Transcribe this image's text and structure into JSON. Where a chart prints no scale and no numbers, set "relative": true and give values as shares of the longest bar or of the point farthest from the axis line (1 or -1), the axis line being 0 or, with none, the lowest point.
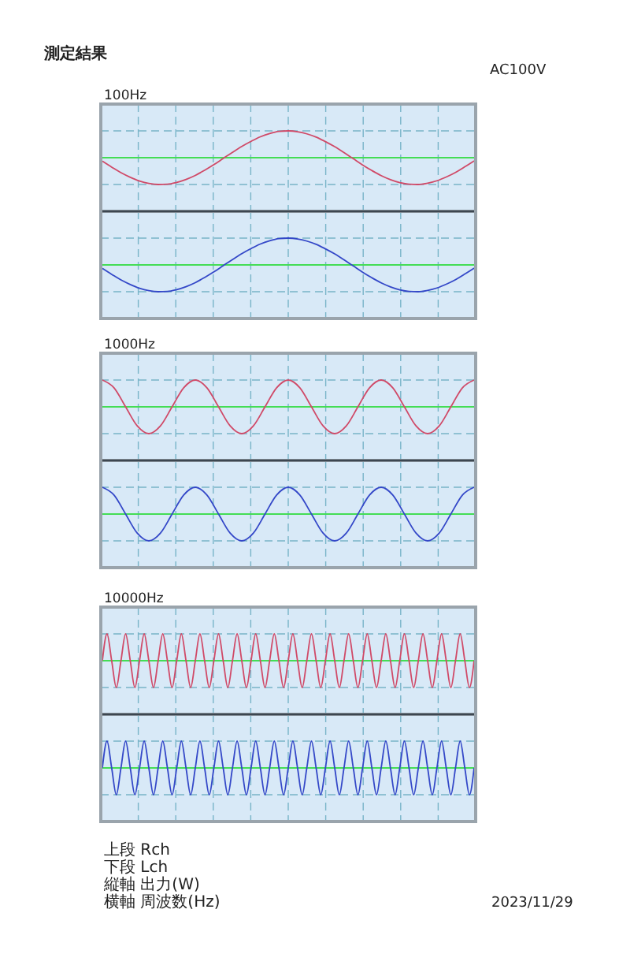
{
  "chart_data": [
    {
      "type": "line",
      "title": "100Hz",
      "relative": true,
      "grid": true,
      "annotations": [
        "測定結果",
        "AC100V"
      ],
      "ref_lines": [
        {
          "axis": "y",
          "value": 0,
          "color": "#44dd55"
        }
      ],
      "categories": [
        null,
        null,
        null,
        null,
        null,
        null,
        null,
        null,
        null,
        null,
        null,
        null,
        null,
        null,
        null,
        null,
        null,
        null,
        null,
        null,
        null,
        null,
        null,
        null,
        null,
        null,
        null,
        null,
        null,
        null,
        null,
        null,
        null,
        null,
        null,
        null,
        null,
        null,
        null,
        null,
        null
      ],
      "series": [
        {
          "color": "#d04a68",
          "values": [
            -0.13,
            -0.35,
            -0.56,
            -0.73,
            -0.87,
            -0.96,
            -1,
            -0.99,
            -0.92,
            -0.81,
            -0.66,
            -0.47,
            -0.26,
            -0.03,
            0.2,
            0.42,
            0.61,
            0.78,
            0.9,
            0.98,
            1,
            0.97,
            0.89,
            0.77,
            0.6,
            0.41,
            0.19,
            -0.04,
            -0.27,
            -0.48,
            -0.67,
            -0.82,
            -0.93,
            -0.99,
            -1,
            -0.95,
            -0.86,
            -0.72,
            -0.55,
            -0.34,
            -0.12
          ]
        }
      ]
    },
    {
      "type": "line",
      "relative": true,
      "grid": true,
      "ref_lines": [
        {
          "axis": "y",
          "value": 0,
          "color": "#44dd55"
        }
      ],
      "categories": [
        null,
        null,
        null,
        null,
        null,
        null,
        null,
        null,
        null,
        null,
        null,
        null,
        null,
        null,
        null,
        null,
        null,
        null,
        null,
        null,
        null,
        null,
        null,
        null,
        null,
        null,
        null,
        null,
        null,
        null,
        null,
        null,
        null,
        null,
        null,
        null,
        null,
        null,
        null,
        null,
        null
      ],
      "series": [
        {
          "color": "#3448c8",
          "values": [
            -0.13,
            -0.35,
            -0.56,
            -0.73,
            -0.87,
            -0.96,
            -1,
            -0.99,
            -0.92,
            -0.81,
            -0.66,
            -0.47,
            -0.26,
            -0.03,
            0.2,
            0.42,
            0.61,
            0.78,
            0.9,
            0.98,
            1,
            0.97,
            0.89,
            0.77,
            0.6,
            0.41,
            0.19,
            -0.04,
            -0.27,
            -0.48,
            -0.67,
            -0.82,
            -0.93,
            -0.99,
            -1,
            -0.95,
            -0.86,
            -0.72,
            -0.55,
            -0.34,
            -0.12
          ]
        }
      ]
    },
    {
      "type": "line",
      "title": "1000Hz",
      "relative": true,
      "grid": true,
      "ref_lines": [
        {
          "axis": "y",
          "value": 0,
          "color": "#44dd55"
        }
      ],
      "categories": [
        null,
        null,
        null,
        null,
        null,
        null,
        null,
        null,
        null,
        null,
        null,
        null,
        null,
        null,
        null,
        null,
        null,
        null,
        null,
        null,
        null,
        null,
        null,
        null,
        null,
        null,
        null,
        null,
        null,
        null,
        null,
        null,
        null
      ],
      "series": [
        {
          "color": "#d04a68",
          "values": [
            1,
            0.71,
            0,
            -0.71,
            -1,
            -0.71,
            0,
            0.71,
            1,
            0.71,
            0,
            -0.71,
            -1,
            -0.71,
            0,
            0.71,
            1,
            0.71,
            0,
            -0.71,
            -1,
            -0.71,
            0,
            0.71,
            1,
            0.71,
            0,
            -0.71,
            -1,
            -0.71,
            0,
            0.71,
            1
          ]
        }
      ]
    },
    {
      "type": "line",
      "relative": true,
      "grid": true,
      "ref_lines": [
        {
          "axis": "y",
          "value": 0,
          "color": "#44dd55"
        }
      ],
      "categories": [
        null,
        null,
        null,
        null,
        null,
        null,
        null,
        null,
        null,
        null,
        null,
        null,
        null,
        null,
        null,
        null,
        null,
        null,
        null,
        null,
        null,
        null,
        null,
        null,
        null,
        null,
        null,
        null,
        null,
        null,
        null,
        null,
        null
      ],
      "series": [
        {
          "color": "#3448c8",
          "values": [
            1,
            0.71,
            0,
            -0.71,
            -1,
            -0.71,
            0,
            0.71,
            1,
            0.71,
            0,
            -0.71,
            -1,
            -0.71,
            0,
            0.71,
            1,
            0.71,
            0,
            -0.71,
            -1,
            -0.71,
            0,
            0.71,
            1,
            0.71,
            0,
            -0.71,
            -1,
            -0.71,
            0,
            0.71,
            1
          ]
        }
      ]
    },
    {
      "type": "line",
      "title": "10000Hz",
      "relative": true,
      "grid": true,
      "ref_lines": [
        {
          "axis": "y",
          "value": 0,
          "color": "#44dd55"
        }
      ],
      "categories": [
        null,
        null,
        null,
        null,
        null,
        null,
        null,
        null,
        null,
        null,
        null,
        null,
        null,
        null,
        null,
        null,
        null,
        null,
        null,
        null,
        null,
        null,
        null,
        null,
        null,
        null,
        null,
        null,
        null,
        null,
        null,
        null,
        null,
        null,
        null,
        null,
        null,
        null,
        null,
        null,
        null,
        null,
        null,
        null,
        null,
        null,
        null,
        null,
        null,
        null,
        null,
        null,
        null,
        null,
        null,
        null,
        null,
        null,
        null,
        null,
        null,
        null,
        null,
        null,
        null,
        null,
        null,
        null,
        null,
        null,
        null,
        null,
        null,
        null,
        null,
        null,
        null,
        null,
        null,
        null,
        null
      ],
      "series": [
        {
          "color": "#d04a68",
          "values": [
            0,
            1,
            0,
            -1,
            0,
            1,
            0,
            -1,
            0,
            1,
            0,
            -1,
            0,
            1,
            0,
            -1,
            0,
            1,
            0,
            -1,
            0,
            1,
            0,
            -1,
            0,
            1,
            0,
            -1,
            0,
            1,
            0,
            -1,
            0,
            1,
            0,
            -1,
            0,
            1,
            0,
            -1,
            0,
            1,
            0,
            -1,
            0,
            1,
            0,
            -1,
            0,
            1,
            0,
            -1,
            0,
            1,
            0,
            -1,
            0,
            1,
            0,
            -1,
            0,
            1,
            0,
            -1,
            0,
            1,
            0,
            -1,
            0,
            1,
            0,
            -1,
            0,
            1,
            0,
            -1,
            0,
            1,
            0,
            -1,
            0
          ]
        }
      ]
    },
    {
      "type": "line",
      "relative": true,
      "grid": true,
      "annotations": [
        "上段 Rch",
        "下段 Lch",
        "縦軸 出力(W)",
        "横軸 周波数(Hz)",
        "2023/11/29"
      ],
      "ref_lines": [
        {
          "axis": "y",
          "value": 0,
          "color": "#44dd55"
        }
      ],
      "categories": [
        null,
        null,
        null,
        null,
        null,
        null,
        null,
        null,
        null,
        null,
        null,
        null,
        null,
        null,
        null,
        null,
        null,
        null,
        null,
        null,
        null,
        null,
        null,
        null,
        null,
        null,
        null,
        null,
        null,
        null,
        null,
        null,
        null,
        null,
        null,
        null,
        null,
        null,
        null,
        null,
        null,
        null,
        null,
        null,
        null,
        null,
        null,
        null,
        null,
        null,
        null,
        null,
        null,
        null,
        null,
        null,
        null,
        null,
        null,
        null,
        null,
        null,
        null,
        null,
        null,
        null,
        null,
        null,
        null,
        null,
        null,
        null,
        null,
        null,
        null,
        null,
        null,
        null,
        null,
        null,
        null
      ],
      "series": [
        {
          "color": "#3448c8",
          "values": [
            0,
            1,
            0,
            -1,
            0,
            1,
            0,
            -1,
            0,
            1,
            0,
            -1,
            0,
            1,
            0,
            -1,
            0,
            1,
            0,
            -1,
            0,
            1,
            0,
            -1,
            0,
            1,
            0,
            -1,
            0,
            1,
            0,
            -1,
            0,
            1,
            0,
            -1,
            0,
            1,
            0,
            -1,
            0,
            1,
            0,
            -1,
            0,
            1,
            0,
            -1,
            0,
            1,
            0,
            -1,
            0,
            1,
            0,
            -1,
            0,
            1,
            0,
            -1,
            0,
            1,
            0,
            -1,
            0,
            1,
            0,
            -1,
            0,
            1,
            0,
            -1,
            0,
            1,
            0,
            -1,
            0,
            1,
            0,
            -1,
            0
          ]
        }
      ]
    }
  ]
}
